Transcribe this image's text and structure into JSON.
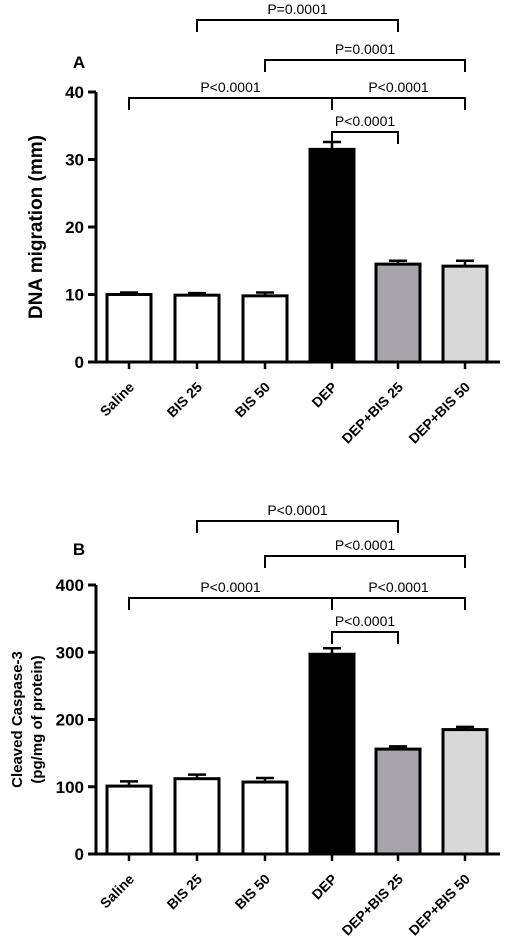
{
  "chart_data": [
    {
      "type": "bar",
      "panel_label": "A",
      "ylabel": "DNA migration (mm)",
      "ylim": [
        0,
        40
      ],
      "yticks": [
        0,
        10,
        20,
        30,
        40
      ],
      "categories": [
        "Saline",
        "BIS 25",
        "BIS 50",
        "DEP",
        "DEP+BIS 25",
        "DEP+BIS 50"
      ],
      "values": [
        10.0,
        9.9,
        9.8,
        31.5,
        14.5,
        14.2
      ],
      "errors": [
        0.3,
        0.3,
        0.5,
        1.1,
        0.5,
        0.8
      ],
      "bar_colors": [
        "#ffffff",
        "#ffffff",
        "#ffffff",
        "#000000",
        "#a7a5ab",
        "#d8d8d8"
      ],
      "comparisons": [
        {
          "from": "BIS 25",
          "to": "DEP+BIS 25",
          "label": "P=0.0001"
        },
        {
          "from": "BIS 50",
          "to": "DEP+BIS 50",
          "label": "P=0.0001"
        },
        {
          "from": "Saline",
          "to": "DEP",
          "label": "P<0.0001"
        },
        {
          "from": "DEP",
          "to": "DEP+BIS 50",
          "label": "P<0.0001"
        },
        {
          "from": "DEP",
          "to": "DEP+BIS 25",
          "label": "P<0.0001"
        }
      ]
    },
    {
      "type": "bar",
      "panel_label": "B",
      "ylabel": "Cleaved Caspase-3\n(pg/mg of protein)",
      "ylim": [
        0,
        400
      ],
      "yticks": [
        0,
        100,
        200,
        300,
        400
      ],
      "categories": [
        "Saline",
        "BIS 25",
        "BIS 50",
        "DEP",
        "DEP+BIS 25",
        "DEP+BIS 50"
      ],
      "values": [
        101,
        112,
        107,
        297,
        156,
        185
      ],
      "errors": [
        7,
        6,
        6,
        9,
        4,
        4
      ],
      "bar_colors": [
        "#ffffff",
        "#ffffff",
        "#ffffff",
        "#000000",
        "#a7a5ab",
        "#d8d8d8"
      ],
      "comparisons": [
        {
          "from": "BIS 25",
          "to": "DEP+BIS 25",
          "label": "P<0.0001"
        },
        {
          "from": "BIS 50",
          "to": "DEP+BIS 50",
          "label": "P<0.0001"
        },
        {
          "from": "Saline",
          "to": "DEP",
          "label": "P<0.0001"
        },
        {
          "from": "DEP",
          "to": "DEP+BIS 50",
          "label": "P<0.0001"
        },
        {
          "from": "DEP",
          "to": "DEP+BIS 25",
          "label": "P<0.0001"
        }
      ]
    }
  ]
}
